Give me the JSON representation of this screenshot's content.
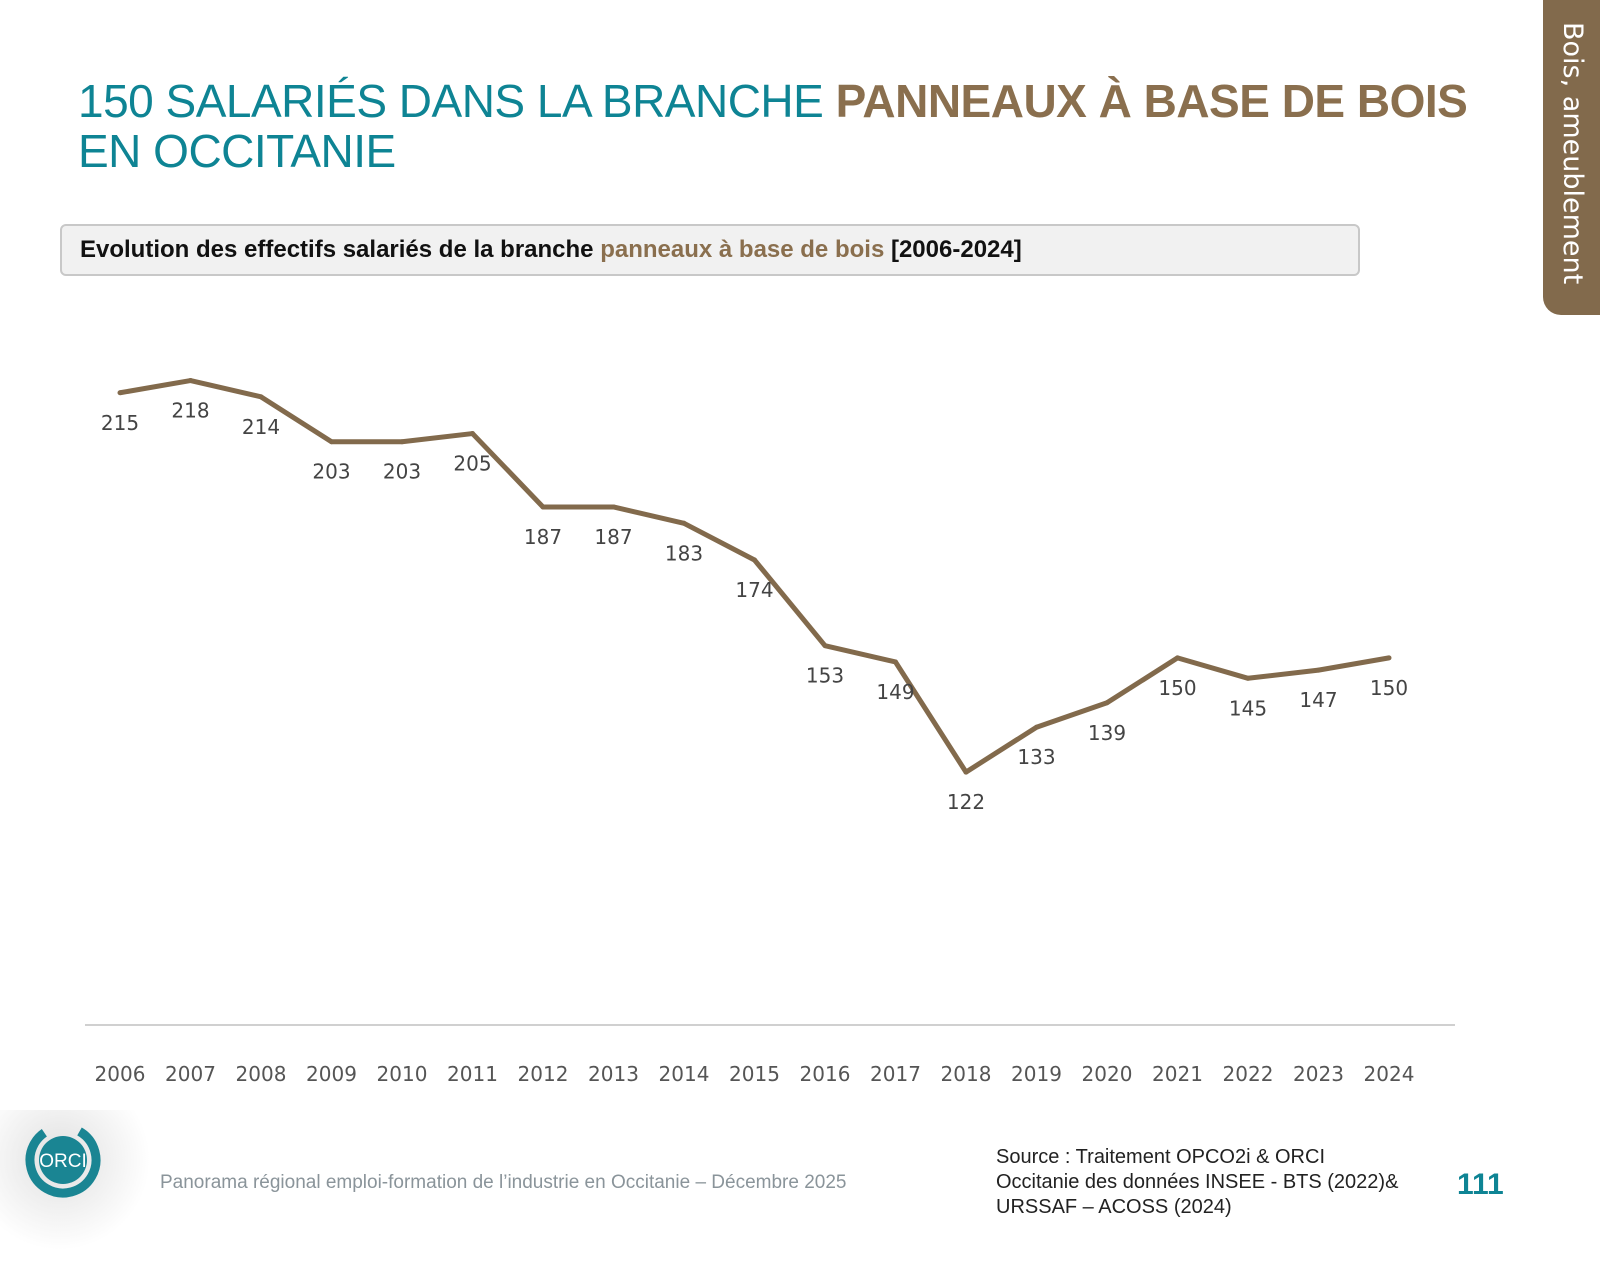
{
  "header": {
    "title_part1": "150 SALARIÉS DANS LA BRANCHE ",
    "title_highlight": "PANNEAUX À BASE DE BOIS",
    "title_part2": "EN OCCITANIE"
  },
  "side_tab": {
    "label": "Bois, ameublement",
    "color": "#826a4c"
  },
  "chart_box": {
    "part1": "Evolution des effectifs salariés de la branche ",
    "highlight": "panneaux à base de bois",
    "part2": " [2006-2024]"
  },
  "chart_data": {
    "type": "line",
    "categories": [
      "2006",
      "2007",
      "2008",
      "2009",
      "2010",
      "2011",
      "2012",
      "2013",
      "2014",
      "2015",
      "2016",
      "2017",
      "2018",
      "2019",
      "2020",
      "2021",
      "2022",
      "2023",
      "2024"
    ],
    "series": [
      {
        "values": [
          215,
          218,
          214,
          203,
          203,
          205,
          187,
          187,
          183,
          174,
          153,
          149,
          122,
          133,
          139,
          150,
          145,
          147,
          150
        ],
        "color": "#826a4c"
      }
    ],
    "ylim": [
      60,
      250
    ],
    "grid": false,
    "data_labels": true
  },
  "footer": {
    "text": "Panorama régional emploi-formation de l’industrie en Occitanie – Décembre 2025",
    "source_lines": [
      "Source : Traitement OPCO2i & ORCI",
      "Occitanie des données  INSEE - BTS (2022)&",
      "URSSAF – ACOSS (2024)"
    ],
    "page_number": "111",
    "logo": "ORCI"
  },
  "colors": {
    "teal": "#0e8494",
    "brown": "#8a6f4e"
  }
}
